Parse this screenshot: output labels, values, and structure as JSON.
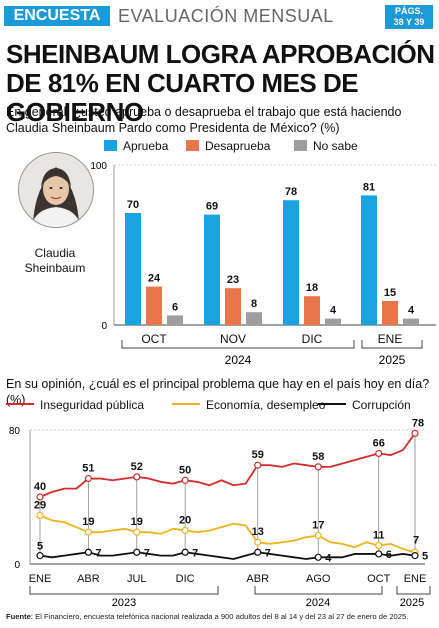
{
  "header": {
    "section_tag": "ENCUESTA",
    "section_title": "EVALUACIÓN MENSUAL",
    "pages_line1": "PÁGS.",
    "pages_line2": "38 Y 39"
  },
  "headline": "SHEINBAUM LOGRA APROBACIÓN DE 81% EN CUARTO MES DE GOBIERNO",
  "photo_caption": "Claudia Sheinbaum",
  "source_label": "Fuente",
  "source_text": ": El Financiero, encuesta telefónica nacional realizada a 900 adultos del 8 al 14 y del 23 al 27 de enero de 2025.",
  "colors": {
    "accent": "#1a9ad6",
    "aprueba": "#1aa3e0",
    "desaprueba": "#e8764a",
    "no_sabe": "#9e9e9e",
    "inseguridad": "#d42b2b",
    "economia": "#f0b21a",
    "corrupcion": "#111111"
  },
  "chart_data": [
    {
      "type": "bar",
      "question": "En general, ¿usted aprueba o desaprueba el trabajo que está haciendo Claudia Sheinbaum Pardo como Presidenta de México? (%)",
      "categories": [
        "OCT",
        "NOV",
        "DIC",
        "ENE"
      ],
      "year_labels": [
        "2024",
        "2025"
      ],
      "series": [
        {
          "name": "Aprueba",
          "values": [
            70,
            69,
            78,
            81
          ]
        },
        {
          "name": "Desaprueba",
          "values": [
            24,
            23,
            18,
            15
          ]
        },
        {
          "name": "No sabe",
          "values": [
            6,
            8,
            4,
            4
          ]
        }
      ],
      "ylim": [
        0,
        100
      ],
      "yticks": [
        "0",
        "100"
      ],
      "legend": "top"
    },
    {
      "type": "line",
      "question": "En su opinión, ¿cuál es el principal problema que hay en el país hoy en día? (%)",
      "x_labels": [
        "ENE",
        "ABR",
        "JUL",
        "DIC",
        "ABR",
        "AGO",
        "OCT",
        "ENE"
      ],
      "year_labels": [
        "2023",
        "2024",
        "2025"
      ],
      "ylim": [
        0,
        80
      ],
      "yticks": [
        "0",
        "80"
      ],
      "legend": "top",
      "series": [
        {
          "name": "Inseguridad pública",
          "values": [
            40,
            43,
            45,
            45,
            51,
            51,
            50,
            51,
            52,
            51,
            49,
            48,
            50,
            49,
            47,
            50,
            47,
            48,
            59,
            59,
            58,
            60,
            59,
            58,
            58,
            60,
            62,
            64,
            66,
            65,
            68,
            78
          ],
          "labels": {
            "0": "40",
            "4": "51",
            "8": "52",
            "12": "50",
            "18": "59",
            "23": "58",
            "28": "66",
            "31": "78"
          }
        },
        {
          "name": "Economía, desempleo",
          "values": [
            29,
            26,
            25,
            22,
            19,
            19,
            20,
            21,
            19,
            19,
            18,
            21,
            20,
            19,
            20,
            22,
            24,
            23,
            13,
            12,
            13,
            14,
            16,
            17,
            13,
            12,
            10,
            13,
            11,
            12,
            9,
            7
          ],
          "labels": {
            "0": "29",
            "4": "19",
            "8": "19",
            "12": "20",
            "18": "13",
            "23": "17",
            "28": "11",
            "31": "7"
          }
        },
        {
          "name": "Corrupción",
          "values": [
            5,
            4,
            5,
            6,
            7,
            5,
            5,
            6,
            7,
            6,
            5,
            5,
            7,
            6,
            5,
            4,
            3,
            5,
            7,
            6,
            5,
            4,
            3,
            4,
            4,
            4,
            6,
            6,
            6,
            5,
            6,
            5
          ],
          "labels": {
            "0": "5",
            "4": "7",
            "8": "7",
            "12": "7",
            "18": "7",
            "23": "4",
            "28": "6",
            "31": "5"
          }
        }
      ]
    }
  ]
}
